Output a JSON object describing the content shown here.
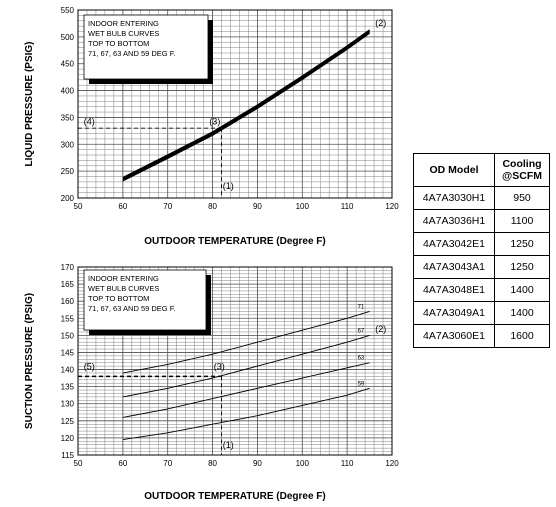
{
  "colors": {
    "grid": "#808080",
    "curve": "#000000",
    "dashed": "#000000"
  },
  "chart_data": [
    {
      "type": "line",
      "ylabel": "LIQUID PRESSURE (PSIG)",
      "xlabel": "OUTDOOR TEMPERATURE (Degree F)",
      "xlim": [
        50,
        120
      ],
      "ylim": [
        200,
        550
      ],
      "x_ticks": [
        50,
        60,
        70,
        80,
        90,
        100,
        110,
        120
      ],
      "y_ticks": [
        200,
        250,
        300,
        350,
        400,
        450,
        500,
        550
      ],
      "grid": true,
      "note_lines": [
        "INDOOR ENTERING",
        "WET BULB CURVES",
        "TOP TO BOTTOM",
        "71, 67, 63 AND 59 DEG F."
      ],
      "series": [
        {
          "values": [
            [
              60,
              238
            ],
            [
              70,
              280
            ],
            [
              80,
              323
            ],
            [
              90,
              373
            ],
            [
              100,
              427
            ],
            [
              110,
              483
            ],
            [
              115,
              513
            ]
          ]
        },
        {
          "values": [
            [
              60,
              236
            ],
            [
              70,
              278
            ],
            [
              80,
              321
            ],
            [
              90,
              371
            ],
            [
              100,
              425
            ],
            [
              110,
              481
            ],
            [
              115,
              511
            ]
          ]
        },
        {
          "values": [
            [
              60,
              234
            ],
            [
              70,
              276
            ],
            [
              80,
              319
            ],
            [
              90,
              369
            ],
            [
              100,
              423
            ],
            [
              110,
              479
            ],
            [
              115,
              509
            ]
          ]
        },
        {
          "values": [
            [
              60,
              232
            ],
            [
              70,
              274
            ],
            [
              80,
              317
            ],
            [
              90,
              367
            ],
            [
              100,
              421
            ],
            [
              110,
              477
            ],
            [
              115,
              507
            ]
          ]
        }
      ],
      "reference": {
        "x": 82,
        "y": 330
      },
      "annotations": [
        {
          "text": "(1)",
          "x": 83.5,
          "y": 217
        },
        {
          "text": "(2)",
          "x": 117.5,
          "y": 520
        },
        {
          "text": "(3)",
          "x": 80.5,
          "y": 337
        },
        {
          "text": "(4)",
          "x": 52.5,
          "y": 337
        }
      ]
    },
    {
      "type": "line",
      "ylabel": "SUCTION PRESSURE (PSIG)",
      "xlabel": "OUTDOOR TEMPERATURE (Degree F)",
      "xlim": [
        50,
        120
      ],
      "ylim": [
        115,
        170
      ],
      "x_ticks": [
        50,
        60,
        70,
        80,
        90,
        100,
        110,
        120
      ],
      "y_ticks": [
        115,
        120,
        125,
        130,
        135,
        140,
        145,
        150,
        155,
        160,
        165,
        170
      ],
      "grid": true,
      "note_lines": [
        "INDOOR ENTERING",
        "WET BULB CURVES",
        "TOP TO BOTTOM",
        "71, 67, 63 AND 59 DEG F."
      ],
      "series": [
        {
          "name": "71",
          "values": [
            [
              60,
              139
            ],
            [
              70,
              141.5
            ],
            [
              80,
              144.5
            ],
            [
              90,
              148
            ],
            [
              100,
              151.5
            ],
            [
              110,
              155
            ],
            [
              115,
              157
            ]
          ]
        },
        {
          "name": "67",
          "values": [
            [
              60,
              132
            ],
            [
              70,
              134.5
            ],
            [
              80,
              137.5
            ],
            [
              90,
              141
            ],
            [
              100,
              144.5
            ],
            [
              110,
              148
            ],
            [
              115,
              150
            ]
          ]
        },
        {
          "name": "63",
          "values": [
            [
              60,
              126
            ],
            [
              70,
              128.5
            ],
            [
              80,
              131.5
            ],
            [
              90,
              134.5
            ],
            [
              100,
              137.5
            ],
            [
              110,
              140.5
            ],
            [
              115,
              142
            ]
          ]
        },
        {
          "name": "59",
          "values": [
            [
              60,
              119.5
            ],
            [
              70,
              121.5
            ],
            [
              80,
              124
            ],
            [
              90,
              126.5
            ],
            [
              100,
              129.5
            ],
            [
              110,
              132.5
            ],
            [
              115,
              134.5
            ]
          ]
        }
      ],
      "reference": {
        "x": 82,
        "y": 138
      },
      "annotations": [
        {
          "text": "(1)",
          "x": 83.5,
          "y": 117
        },
        {
          "text": "(2)",
          "x": 117.5,
          "y": 151
        },
        {
          "text": "(3)",
          "x": 81.5,
          "y": 140
        },
        {
          "text": "(5)",
          "x": 52.5,
          "y": 140
        }
      ]
    }
  ],
  "table": {
    "headers": [
      "OD Model",
      "Cooling @SCFM"
    ],
    "header_cooling_line1": "Cooling",
    "header_cooling_line2": "@SCFM",
    "rows": [
      [
        "4A7A3030H1",
        "950"
      ],
      [
        "4A7A3036H1",
        "1100"
      ],
      [
        "4A7A3042E1",
        "1250"
      ],
      [
        "4A7A3043A1",
        "1250"
      ],
      [
        "4A7A3048E1",
        "1400"
      ],
      [
        "4A7A3049A1",
        "1400"
      ],
      [
        "4A7A3060E1",
        "1600"
      ]
    ]
  }
}
